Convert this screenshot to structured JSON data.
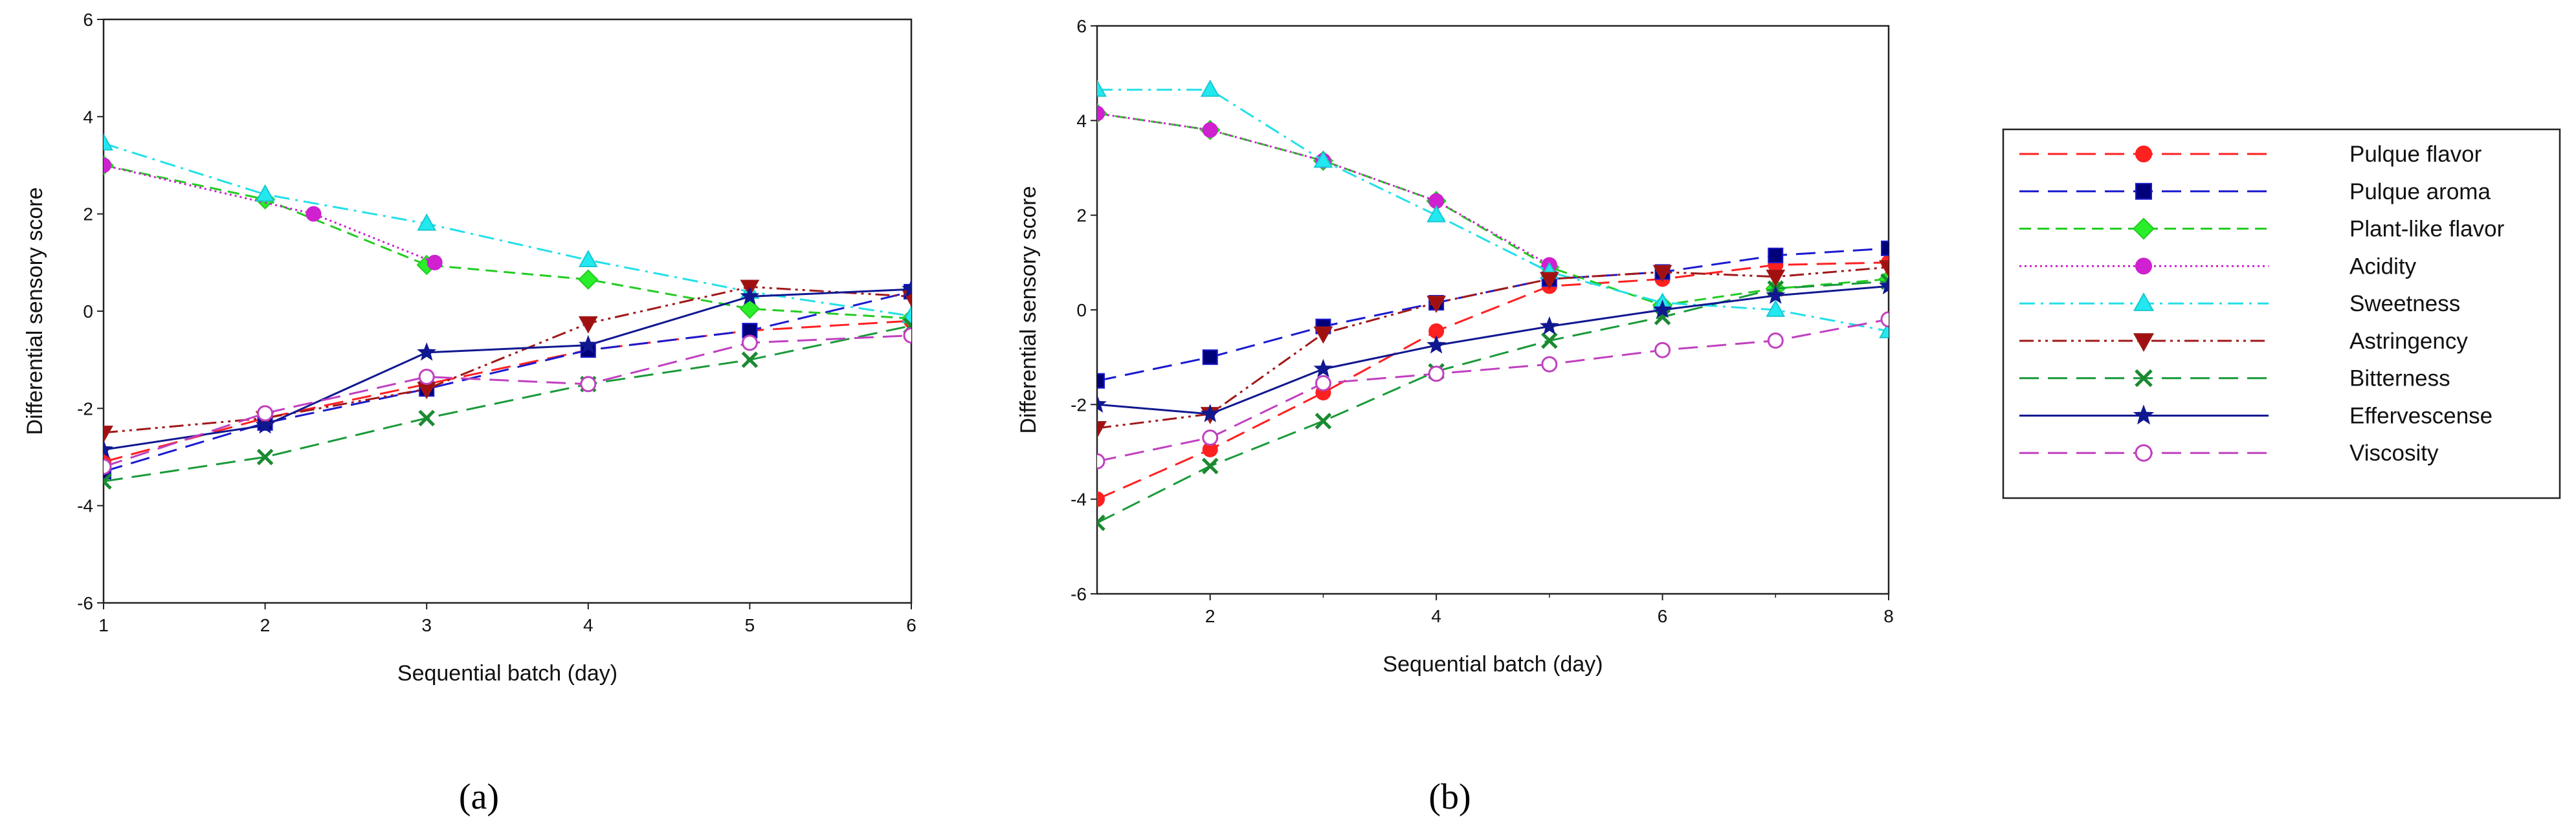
{
  "chart_data": [
    {
      "type": "line",
      "panel_label": "(a)",
      "xlabel": "Sequential batch (day)",
      "ylabel": "Differential sensory score",
      "xlim": [
        1,
        6
      ],
      "ylim": [
        -6,
        6
      ],
      "xticks": [
        "1",
        "2",
        "3",
        "4",
        "5",
        "6"
      ],
      "yticks": [
        "-6",
        "-4",
        "-2",
        "0",
        "2",
        "4",
        "6"
      ],
      "series": [
        {
          "name": "Pulque flavor",
          "x": [
            1,
            2,
            3,
            4,
            5,
            6
          ],
          "values": [
            -3.1,
            -2.2,
            -1.5,
            -0.8,
            -0.4,
            -0.2
          ]
        },
        {
          "name": "Pulque aroma",
          "x": [
            1,
            2,
            3,
            4,
            5,
            6
          ],
          "values": [
            -3.3,
            -2.3,
            -1.6,
            -0.8,
            -0.4,
            0.4
          ]
        },
        {
          "name": "Plant-like flavor",
          "x": [
            1,
            2,
            3,
            4,
            5,
            6
          ],
          "values": [
            3.0,
            2.3,
            0.95,
            0.65,
            0.05,
            -0.15
          ]
        },
        {
          "name": "Acidity",
          "x": [
            1,
            2.3,
            3.05
          ],
          "values": [
            3.0,
            2.0,
            1.0
          ]
        },
        {
          "name": "Sweetness",
          "x": [
            1,
            2,
            3,
            4,
            5,
            6
          ],
          "values": [
            3.45,
            2.4,
            1.8,
            1.05,
            0.4,
            -0.1
          ]
        },
        {
          "name": "Astringency",
          "x": [
            1,
            2,
            3,
            4,
            5,
            6
          ],
          "values": [
            -2.5,
            -2.2,
            -1.6,
            -0.25,
            0.5,
            0.3
          ]
        },
        {
          "name": "Bitterness",
          "x": [
            1,
            2,
            3,
            4,
            5,
            6
          ],
          "values": [
            -3.5,
            -3.0,
            -2.2,
            -1.5,
            -1.0,
            -0.3
          ]
        },
        {
          "name": "Effervescense",
          "x": [
            1,
            2,
            3,
            4,
            5,
            6
          ],
          "values": [
            -2.85,
            -2.35,
            -0.85,
            -0.7,
            0.3,
            0.45
          ]
        },
        {
          "name": "Viscosity",
          "x": [
            1,
            2,
            3,
            4,
            5,
            6
          ],
          "values": [
            -3.2,
            -2.1,
            -1.35,
            -1.5,
            -0.65,
            -0.5
          ]
        }
      ]
    },
    {
      "type": "line",
      "panel_label": "(b)",
      "xlabel": "Sequential batch (day)",
      "ylabel": "Differential sensory score",
      "xlim": [
        1,
        8
      ],
      "ylim": [
        -6,
        6
      ],
      "xticks": [
        "2",
        "4",
        "6",
        "8"
      ],
      "yticks": [
        "-6",
        "-4",
        "-2",
        "0",
        "2",
        "4",
        "6"
      ],
      "series": [
        {
          "name": "Pulque flavor",
          "x": [
            1,
            2,
            3,
            4,
            5,
            6,
            7,
            8
          ],
          "values": [
            -4.0,
            -2.95,
            -1.75,
            -0.45,
            0.5,
            0.65,
            0.95,
            1.0
          ]
        },
        {
          "name": "Pulque aroma",
          "x": [
            1,
            2,
            3,
            4,
            5,
            6,
            7,
            8
          ],
          "values": [
            -1.5,
            -1.0,
            -0.35,
            0.15,
            0.65,
            0.8,
            1.15,
            1.3
          ]
        },
        {
          "name": "Plant-like flavor",
          "x": [
            1,
            2,
            3,
            4,
            5,
            6,
            7,
            8
          ],
          "values": [
            4.15,
            3.8,
            3.15,
            2.3,
            0.9,
            0.1,
            0.45,
            0.65
          ]
        },
        {
          "name": "Acidity",
          "x": [
            1,
            2,
            3,
            4,
            5
          ],
          "values": [
            4.15,
            3.8,
            3.15,
            2.3,
            0.95
          ]
        },
        {
          "name": "Sweetness",
          "x": [
            1,
            2,
            3,
            4,
            5,
            6,
            7,
            8
          ],
          "values": [
            4.65,
            4.65,
            3.15,
            2.0,
            0.8,
            0.15,
            0.0,
            -0.45
          ]
        },
        {
          "name": "Astringency",
          "x": [
            1,
            2,
            3,
            4,
            5,
            6,
            7,
            8
          ],
          "values": [
            -2.5,
            -2.2,
            -0.5,
            0.15,
            0.65,
            0.8,
            0.7,
            0.9
          ]
        },
        {
          "name": "Bitterness",
          "x": [
            1,
            2,
            3,
            4,
            5,
            6,
            7,
            8
          ],
          "values": [
            -4.5,
            -3.3,
            -2.35,
            -1.3,
            -0.65,
            -0.15,
            0.45,
            0.6
          ]
        },
        {
          "name": "Effervescense",
          "x": [
            1,
            2,
            3,
            4,
            5,
            6,
            7,
            8
          ],
          "values": [
            -2.0,
            -2.2,
            -1.25,
            -0.75,
            -0.35,
            0.0,
            0.3,
            0.5
          ]
        },
        {
          "name": "Viscosity",
          "x": [
            1,
            2,
            3,
            4,
            5,
            6,
            7,
            8
          ],
          "values": [
            -3.2,
            -2.7,
            -1.55,
            -1.35,
            -1.15,
            -0.85,
            -0.65,
            -0.2
          ]
        }
      ]
    }
  ],
  "legend": {
    "items": [
      {
        "name": "Pulque flavor",
        "color": "#ff2020",
        "dash": "long",
        "marker": "circle",
        "fill": "#ff2020"
      },
      {
        "name": "Pulque aroma",
        "color": "#1a1ad0",
        "dash": "long",
        "marker": "square",
        "fill": "#00007a"
      },
      {
        "name": "Plant-like flavor",
        "color": "#22cc22",
        "dash": "medium",
        "marker": "diamond",
        "fill": "#2aee2a"
      },
      {
        "name": "Acidity",
        "color": "#cc22cc",
        "dash": "dotted",
        "marker": "circle",
        "fill": "#d020d0"
      },
      {
        "name": "Sweetness",
        "color": "#22e0e8",
        "dash": "dashdot",
        "marker": "triangle",
        "fill": "#22e8f0"
      },
      {
        "name": "Astringency",
        "color": "#a01818",
        "dash": "dashdotdot",
        "marker": "triangle-down",
        "fill": "#a01010"
      },
      {
        "name": "Bitterness",
        "color": "#1a9a3a",
        "dash": "long",
        "marker": "x",
        "fill": "#1a8a30"
      },
      {
        "name": "Effervescense",
        "color": "#101890",
        "dash": "solid",
        "marker": "star",
        "fill": "#101890"
      },
      {
        "name": "Viscosity",
        "color": "#c040c0",
        "dash": "long",
        "marker": "open-circle",
        "fill": "#ffffff"
      }
    ]
  }
}
